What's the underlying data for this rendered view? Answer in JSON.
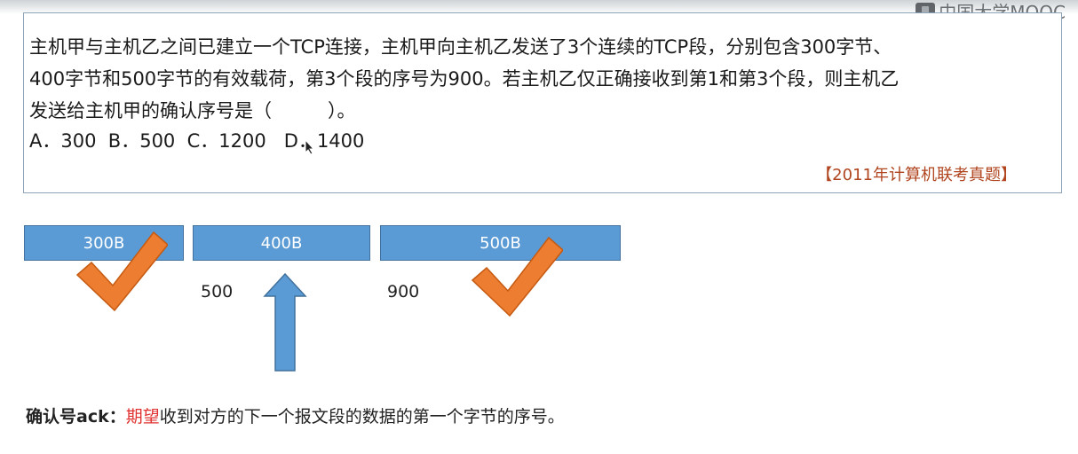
{
  "watermark": {
    "text": "中国大学MOOC",
    "icon": "mooc-logo-icon"
  },
  "question": {
    "lines": [
      "主机甲与主机乙之间已建立一个TCP连接，主机甲向主机乙发送了3个连续的TCP段，分别包含300字节、",
      "400字节和500字节的有效载荷，第3个段的序号为900。若主机乙仅正确接收到第1和第3个段，则主机乙",
      "发送给主机甲的确认序号是（　　　）。"
    ],
    "options": "A．300  B．500  C．1200   D．1400",
    "source": "【2011年计算机联考真题】"
  },
  "diagram": {
    "segments": [
      {
        "label": "300B",
        "received": true
      },
      {
        "label": "400B",
        "received": false
      },
      {
        "label": "500B",
        "received": true
      }
    ],
    "seq_labels": [
      "500",
      "900"
    ],
    "colors": {
      "segment_fill": "#5b9bd5",
      "check_fill": "#ed7d31",
      "arrow_fill": "#5b9bd5"
    }
  },
  "definition": {
    "term": "确认号ack：",
    "highlight": "期望",
    "rest": "收到对方的下一个报文段的数据的第一个字节的序号。"
  }
}
